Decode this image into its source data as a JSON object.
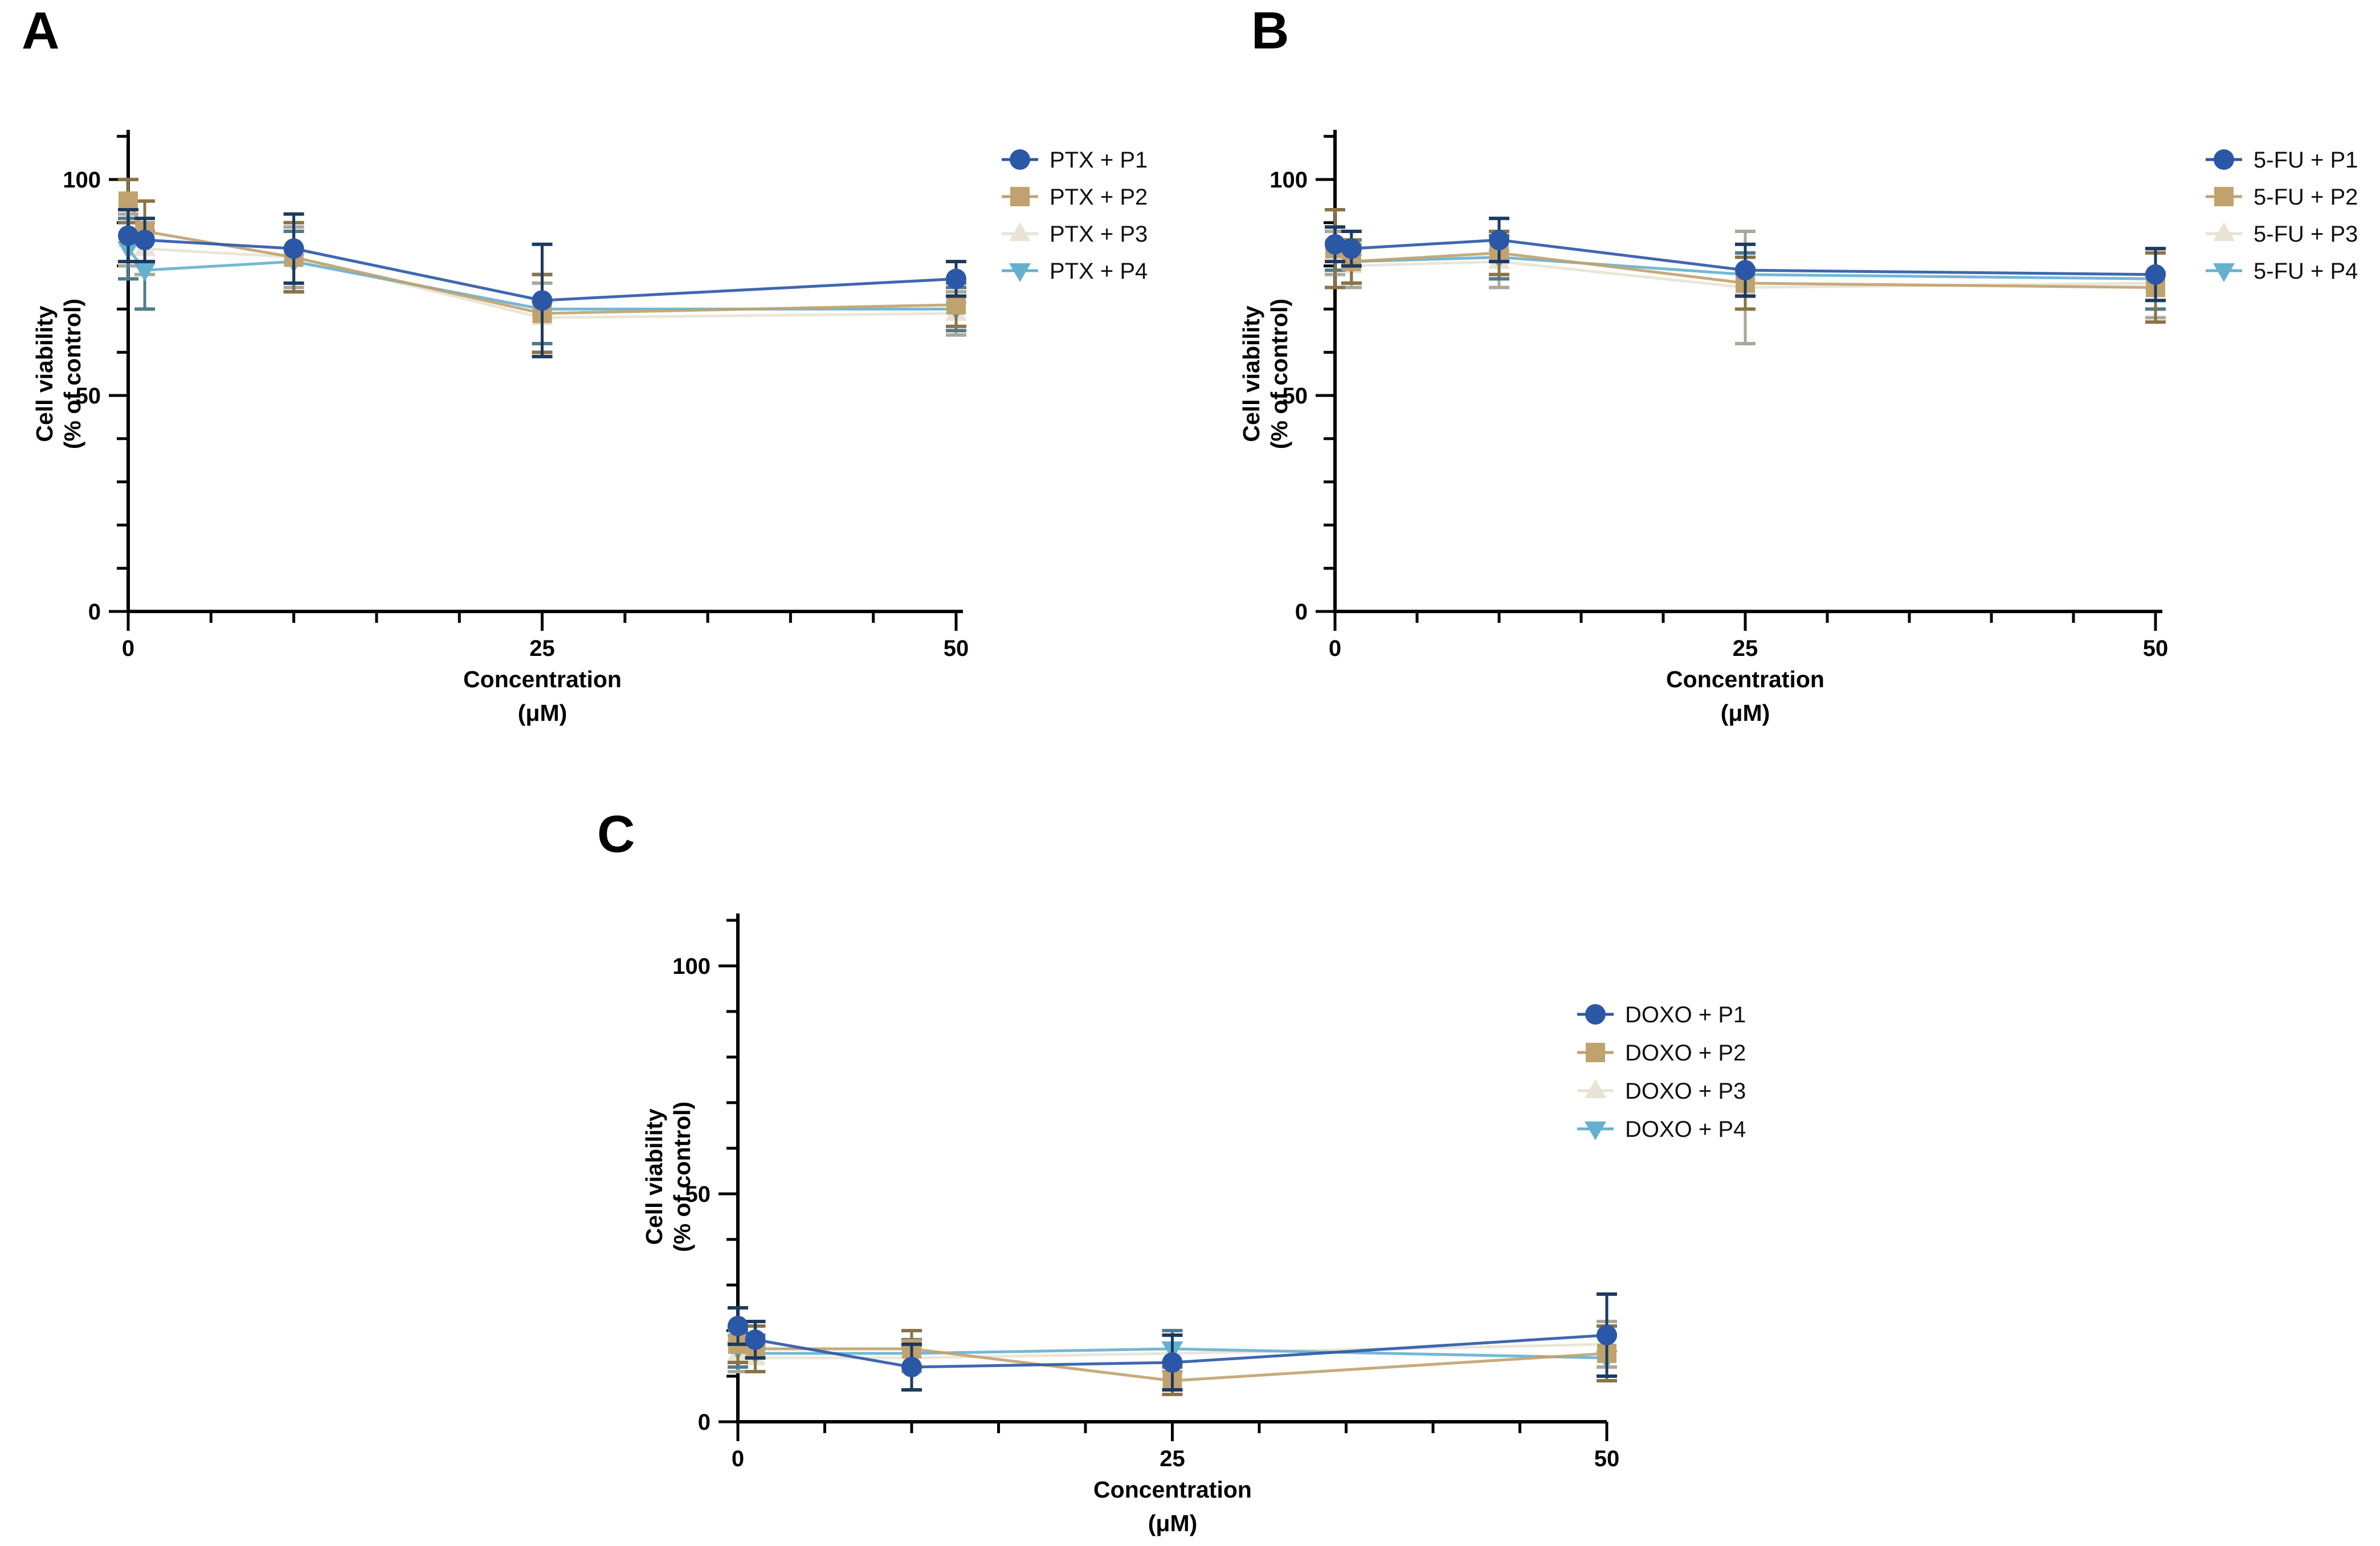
{
  "background_color": "#ffffff",
  "chart_data": [
    {
      "type": "line",
      "panel_label": "A",
      "xlabel": "Concentration",
      "xlabel_unit": "(μM)",
      "ylabel_line1": "Cell viability",
      "ylabel_line2": "(% of control)",
      "x": [
        0,
        1,
        10,
        25,
        50
      ],
      "xticks": [
        0,
        25,
        50
      ],
      "xtick_minor_step": 5,
      "yticks": [
        0,
        50,
        100
      ],
      "ytick_minor_step": 10,
      "ylim": [
        0,
        115
      ],
      "grid": false,
      "legend_position": "right",
      "series": [
        {
          "name": "PTX + P1",
          "marker": "circle",
          "color": "#2b57a7",
          "error_color": "#1d3a5f",
          "values": [
            87,
            86,
            84,
            72,
            77
          ],
          "errors": [
            6,
            5,
            8,
            13,
            4
          ]
        },
        {
          "name": "PTX + P2",
          "marker": "square",
          "color": "#c0a26e",
          "error_color": "#8a7347",
          "values": [
            95,
            88,
            82,
            69,
            71
          ],
          "errors": [
            5,
            7,
            8,
            9,
            5
          ]
        },
        {
          "name": "PTX + P3",
          "marker": "triangle-up",
          "color": "#e8e3d4",
          "error_color": "#aaa89b",
          "values": [
            86,
            84,
            82,
            68,
            69
          ],
          "errors": [
            6,
            6,
            7,
            8,
            5
          ]
        },
        {
          "name": "PTX + P4",
          "marker": "triangle-down",
          "color": "#66b0cf",
          "error_color": "#4f7c8c",
          "values": [
            84,
            79,
            81,
            70,
            70
          ],
          "errors": [
            7,
            9,
            7,
            8,
            5
          ]
        }
      ]
    },
    {
      "type": "line",
      "panel_label": "B",
      "xlabel": "Concentration",
      "xlabel_unit": "(μM)",
      "ylabel_line1": "Cell viability",
      "ylabel_line2": "(% of control)",
      "x": [
        0,
        1,
        10,
        25,
        50
      ],
      "xticks": [
        0,
        25,
        50
      ],
      "xtick_minor_step": 5,
      "yticks": [
        0,
        50,
        100
      ],
      "ytick_minor_step": 10,
      "ylim": [
        0,
        115
      ],
      "grid": false,
      "legend_position": "right",
      "series": [
        {
          "name": "5-FU + P1",
          "marker": "circle",
          "color": "#2b57a7",
          "error_color": "#1d3a5f",
          "values": [
            85,
            84,
            86,
            79,
            78
          ],
          "errors": [
            4,
            4,
            5,
            6,
            6
          ]
        },
        {
          "name": "5-FU + P2",
          "marker": "square",
          "color": "#c0a26e",
          "error_color": "#8a7347",
          "values": [
            84,
            81,
            83,
            76,
            75
          ],
          "errors": [
            9,
            5,
            5,
            6,
            8
          ]
        },
        {
          "name": "5-FU + P3",
          "marker": "triangle-up",
          "color": "#e8e3d4",
          "error_color": "#aaa89b",
          "values": [
            83,
            80,
            81,
            75,
            76
          ],
          "errors": [
            5,
            5,
            6,
            13,
            8
          ]
        },
        {
          "name": "5-FU + P4",
          "marker": "triangle-down",
          "color": "#66b0cf",
          "error_color": "#4f7c8c",
          "values": [
            84,
            81,
            82,
            78,
            77
          ],
          "errors": [
            5,
            5,
            5,
            5,
            7
          ]
        }
      ]
    },
    {
      "type": "line",
      "panel_label": "C",
      "xlabel": "Concentration",
      "xlabel_unit": "(μM)",
      "ylabel_line1": "Cell viability",
      "ylabel_line2": "(% of control)",
      "x": [
        0,
        1,
        10,
        25,
        50
      ],
      "xticks": [
        0,
        25,
        50
      ],
      "xtick_minor_step": 5,
      "yticks": [
        0,
        50,
        100
      ],
      "ytick_minor_step": 10,
      "ylim": [
        0,
        115
      ],
      "grid": false,
      "legend_position": "right",
      "series": [
        {
          "name": "DOXO + P1",
          "marker": "circle",
          "color": "#2b57a7",
          "error_color": "#1d3a5f",
          "values": [
            21,
            18,
            12,
            13,
            19
          ],
          "errors": [
            4,
            4,
            5,
            6,
            9
          ]
        },
        {
          "name": "DOXO + P2",
          "marker": "square",
          "color": "#c0a26e",
          "error_color": "#8a7347",
          "values": [
            17,
            16,
            16,
            9,
            15
          ],
          "errors": [
            4,
            5,
            4,
            3,
            6
          ]
        },
        {
          "name": "DOXO + P3",
          "marker": "triangle-up",
          "color": "#e8e3d4",
          "error_color": "#aaa89b",
          "values": [
            15,
            14,
            14,
            15,
            17
          ],
          "errors": [
            4,
            3,
            3,
            4,
            5
          ]
        },
        {
          "name": "DOXO + P4",
          "marker": "triangle-down",
          "color": "#66b0cf",
          "error_color": "#4f7c8c",
          "values": [
            16,
            15,
            15,
            16,
            14
          ],
          "errors": [
            4,
            4,
            3,
            4,
            5
          ]
        }
      ]
    }
  ]
}
